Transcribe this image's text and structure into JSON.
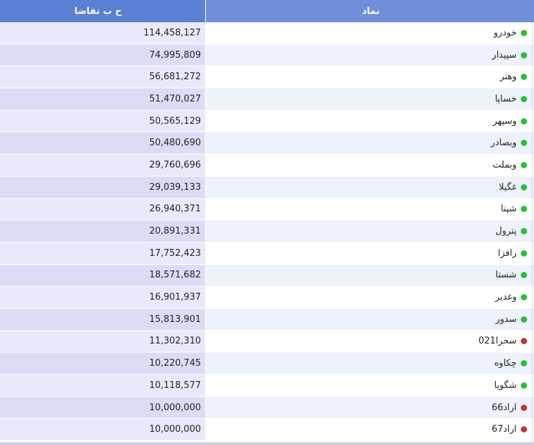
{
  "headers": {
    "value": "ح ب تقاضا",
    "symbol": "نماد"
  },
  "colors": {
    "up": "#27c034",
    "down": "#c0392b",
    "header_bg": "#5b7fd2"
  },
  "rows": [
    {
      "symbol": "خودرو",
      "value": "114,458,127",
      "status": "green"
    },
    {
      "symbol": "سپیدار",
      "value": "74,995,809",
      "status": "green"
    },
    {
      "symbol": "وهنر",
      "value": "56,681,272",
      "status": "green"
    },
    {
      "symbol": "خساپا",
      "value": "51,470,027",
      "status": "green"
    },
    {
      "symbol": "وسپهر",
      "value": "50,565,129",
      "status": "green"
    },
    {
      "symbol": "وبصادر",
      "value": "50,480,690",
      "status": "green"
    },
    {
      "symbol": "وبملت",
      "value": "29,760,696",
      "status": "green"
    },
    {
      "symbol": "غگیلا",
      "value": "29,039,133",
      "status": "green"
    },
    {
      "symbol": "شپنا",
      "value": "26,940,371",
      "status": "green"
    },
    {
      "symbol": "پترول",
      "value": "20,891,331",
      "status": "green"
    },
    {
      "symbol": "رافزا",
      "value": "17,752,423",
      "status": "green"
    },
    {
      "symbol": "شستا",
      "value": "18,571,682",
      "status": "green"
    },
    {
      "symbol": "وغدیر",
      "value": "16,901,937",
      "status": "green"
    },
    {
      "symbol": "سدور",
      "value": "15,813,901",
      "status": "green"
    },
    {
      "symbol": "سحرا021",
      "value": "11,302,310",
      "status": "red"
    },
    {
      "symbol": "چکاوه",
      "value": "10,220,745",
      "status": "green"
    },
    {
      "symbol": "شگویا",
      "value": "10,118,577",
      "status": "green"
    },
    {
      "symbol": "اراد66",
      "value": "10,000,000",
      "status": "red"
    },
    {
      "symbol": "اراد67",
      "value": "10,000,000",
      "status": "red"
    }
  ]
}
